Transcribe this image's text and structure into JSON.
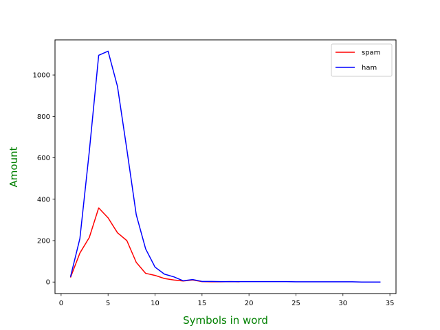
{
  "chart_data": {
    "type": "line",
    "title": "",
    "xlabel": "Symbols in word",
    "ylabel": "Amount",
    "label_color": "#008000",
    "xlim": [
      -0.65,
      35.65
    ],
    "ylim": [
      -55.7,
      1169.6
    ],
    "xticks": [
      0,
      5,
      10,
      15,
      20,
      25,
      30,
      35
    ],
    "yticks": [
      0,
      200,
      400,
      600,
      800,
      1000
    ],
    "grid": false,
    "legend_position": "top-right",
    "series": [
      {
        "name": "spam",
        "color": "#ff0000",
        "points": [
          [
            1,
            22
          ],
          [
            2,
            140
          ],
          [
            3,
            215
          ],
          [
            4,
            358
          ],
          [
            5,
            310
          ],
          [
            6,
            238
          ],
          [
            7,
            200
          ],
          [
            8,
            95
          ],
          [
            9,
            42
          ],
          [
            10,
            32
          ],
          [
            11,
            17
          ],
          [
            12,
            10
          ],
          [
            13,
            5
          ],
          [
            14,
            10
          ],
          [
            15,
            2
          ],
          [
            16,
            1
          ],
          [
            17,
            1
          ],
          [
            18,
            2
          ],
          [
            19,
            1
          ]
        ]
      },
      {
        "name": "ham",
        "color": "#0000ff",
        "points": [
          [
            1,
            25
          ],
          [
            2,
            210
          ],
          [
            3,
            630
          ],
          [
            4,
            1095
          ],
          [
            5,
            1115
          ],
          [
            6,
            945
          ],
          [
            7,
            640
          ],
          [
            8,
            325
          ],
          [
            9,
            160
          ],
          [
            10,
            72
          ],
          [
            11,
            38
          ],
          [
            12,
            25
          ],
          [
            13,
            6
          ],
          [
            14,
            12
          ],
          [
            15,
            3
          ],
          [
            16,
            3
          ],
          [
            17,
            2
          ],
          [
            18,
            2
          ],
          [
            19,
            2
          ],
          [
            20,
            2
          ],
          [
            21,
            2
          ],
          [
            22,
            2
          ],
          [
            23,
            2
          ],
          [
            24,
            2
          ],
          [
            25,
            1
          ],
          [
            26,
            1
          ],
          [
            27,
            1
          ],
          [
            28,
            1
          ],
          [
            29,
            1
          ],
          [
            30,
            1
          ],
          [
            31,
            1
          ],
          [
            32,
            0
          ],
          [
            33,
            0
          ],
          [
            34,
            0
          ]
        ]
      }
    ]
  }
}
